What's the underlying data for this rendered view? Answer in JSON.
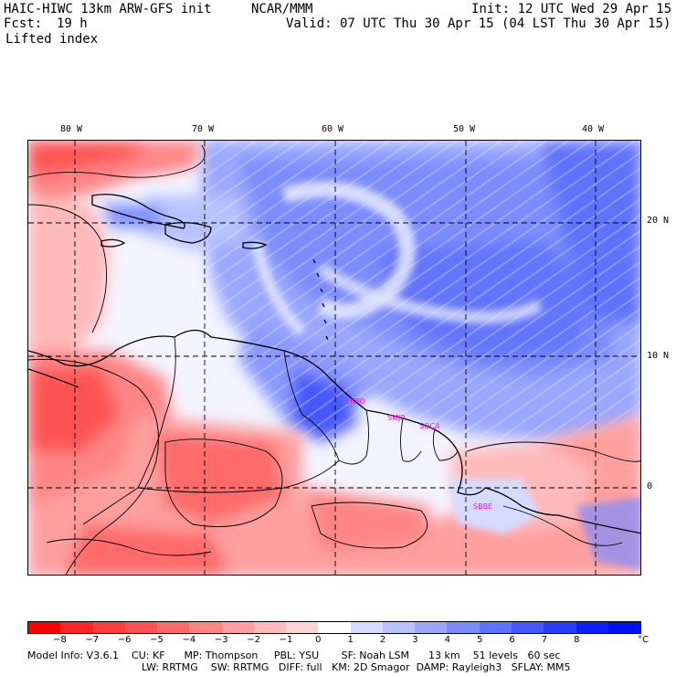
{
  "header": {
    "model": "HAIC-HIWC 13km ARW-GFS init",
    "org": "NCAR/MMM",
    "init": "Init: 12 UTC Wed 29 Apr 15",
    "fcst_label": "Fcst:",
    "fcst_value": "19 h",
    "valid": "Valid: 07 UTC Thu 30 Apr 15 (04 LST Thu 30 Apr 15)",
    "field": "Lifted index"
  },
  "lon_labels": [
    "80 W",
    "70 W",
    "60 W",
    "50 W",
    "40 W"
  ],
  "lat_labels": [
    "20 N",
    "10 N",
    "0"
  ],
  "stations": [
    "SKBO",
    "SMJP",
    "SOCA",
    "SBBE"
  ],
  "colorbar": {
    "unit": "°C",
    "tick_labels": [
      "−8",
      "−7",
      "−6",
      "−5",
      "−4",
      "−3",
      "−2",
      "−1",
      "0",
      "1",
      "2",
      "3",
      "4",
      "5",
      "6",
      "7",
      "8"
    ],
    "colors": [
      "#ff0000",
      "#ff2525",
      "#ff3c3c",
      "#ff5252",
      "#ff6b6b",
      "#ff8585",
      "#ff9f9f",
      "#ffbaba",
      "#ffd6d6",
      "#ffffff",
      "#d6dcff",
      "#b8c2ff",
      "#9aa7ff",
      "#7c8cff",
      "#5f72ff",
      "#4458ff",
      "#2a3eff",
      "#1020ff",
      "#0010f0"
    ]
  },
  "footer": {
    "line1": "Model Info: V3.6.1    CU: KF      MP: Thompson     PBL: YSU       SF: Noah LSM      13 km    51 levels   60 sec",
    "line2": "LW: RRTMG    SW: RRTMG   DIFF: full   KM: 2D Smagor  DAMP: Rayleigh3   SFLAY: MM5"
  }
}
